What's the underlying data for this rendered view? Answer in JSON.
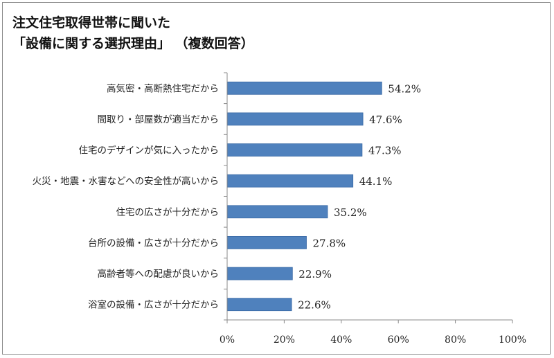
{
  "title_lines": [
    "注文住宅取得世帯に聞いた",
    "「設備に関する選択理由」 （複数回答）"
  ],
  "chart_data": {
    "type": "bar",
    "orientation": "horizontal",
    "categories": [
      "高気密・高断熱住宅だから",
      "間取り・部屋数が適当だから",
      "住宅のデザインが気に入ったから",
      "火災・地震・水害などへの安全性が高いから",
      "住宅の広さが十分だから",
      "台所の設備・広さが十分だから",
      "高齢者等への配慮が良いから",
      "浴室の設備・広さが十分だから"
    ],
    "values": [
      54.2,
      47.6,
      47.3,
      44.1,
      35.2,
      27.8,
      22.9,
      22.6
    ],
    "value_labels": [
      "54.2%",
      "47.6%",
      "47.3%",
      "44.1%",
      "35.2%",
      "27.8%",
      "22.9%",
      "22.6%"
    ],
    "xlim": [
      0,
      100
    ],
    "x_ticks": [
      0,
      20,
      40,
      60,
      80,
      100
    ],
    "x_tick_labels": [
      "0%",
      "20%",
      "40%",
      "60%",
      "80%",
      "100%"
    ],
    "grid": false,
    "bar_color": "#4f81bd",
    "bar_border_color": "#3a6aa6"
  }
}
